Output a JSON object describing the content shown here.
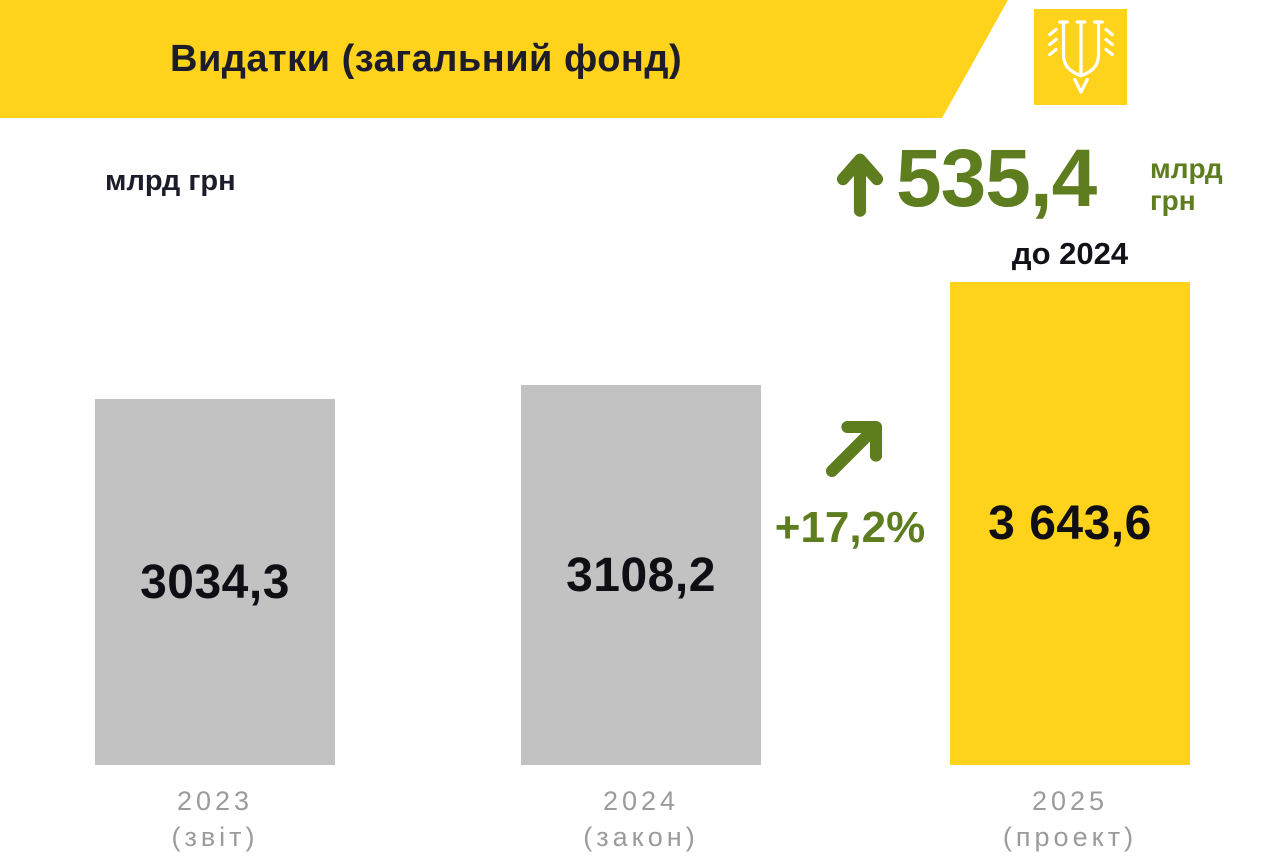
{
  "header": {
    "title": "Видатки (загальний фонд)"
  },
  "unit_label": "млрд грн",
  "increase": {
    "value": "535,4",
    "unit_line1": "млрд",
    "unit_line2": "грн",
    "compare_label": "до 2024",
    "percent": "+17,2%"
  },
  "chart_data": {
    "type": "bar",
    "title": "Видатки (загальний фонд)",
    "ylabel": "млрд грн",
    "categories": [
      "2023 (звіт)",
      "2024 (закон)",
      "2025 (проект)"
    ],
    "values": [
      3034.3,
      3108.2,
      3643.6
    ],
    "value_labels": [
      "3034,3",
      "3108,2",
      "3 643,6"
    ],
    "category_lines": [
      [
        "2023",
        "(звіт)"
      ],
      [
        "2024",
        "(закон)"
      ],
      [
        "2025",
        "(проект)"
      ]
    ],
    "bar_colors": [
      "#c2c2c2",
      "#c2c2c2",
      "#ffd21c"
    ],
    "grid": false,
    "legend": false,
    "annotations": [
      {
        "text": "+17,2%",
        "between": [
          "2024 (закон)",
          "2025 (проект)"
        ]
      },
      {
        "text": "535,4 млрд грн до 2024",
        "type": "increase-callout"
      }
    ]
  },
  "colors": {
    "yellow": "#ffd21c",
    "gray": "#c2c2c2",
    "green": "#5d7d1f",
    "dark": "#1c1c2b",
    "axis_gray": "#9b9b9b"
  }
}
